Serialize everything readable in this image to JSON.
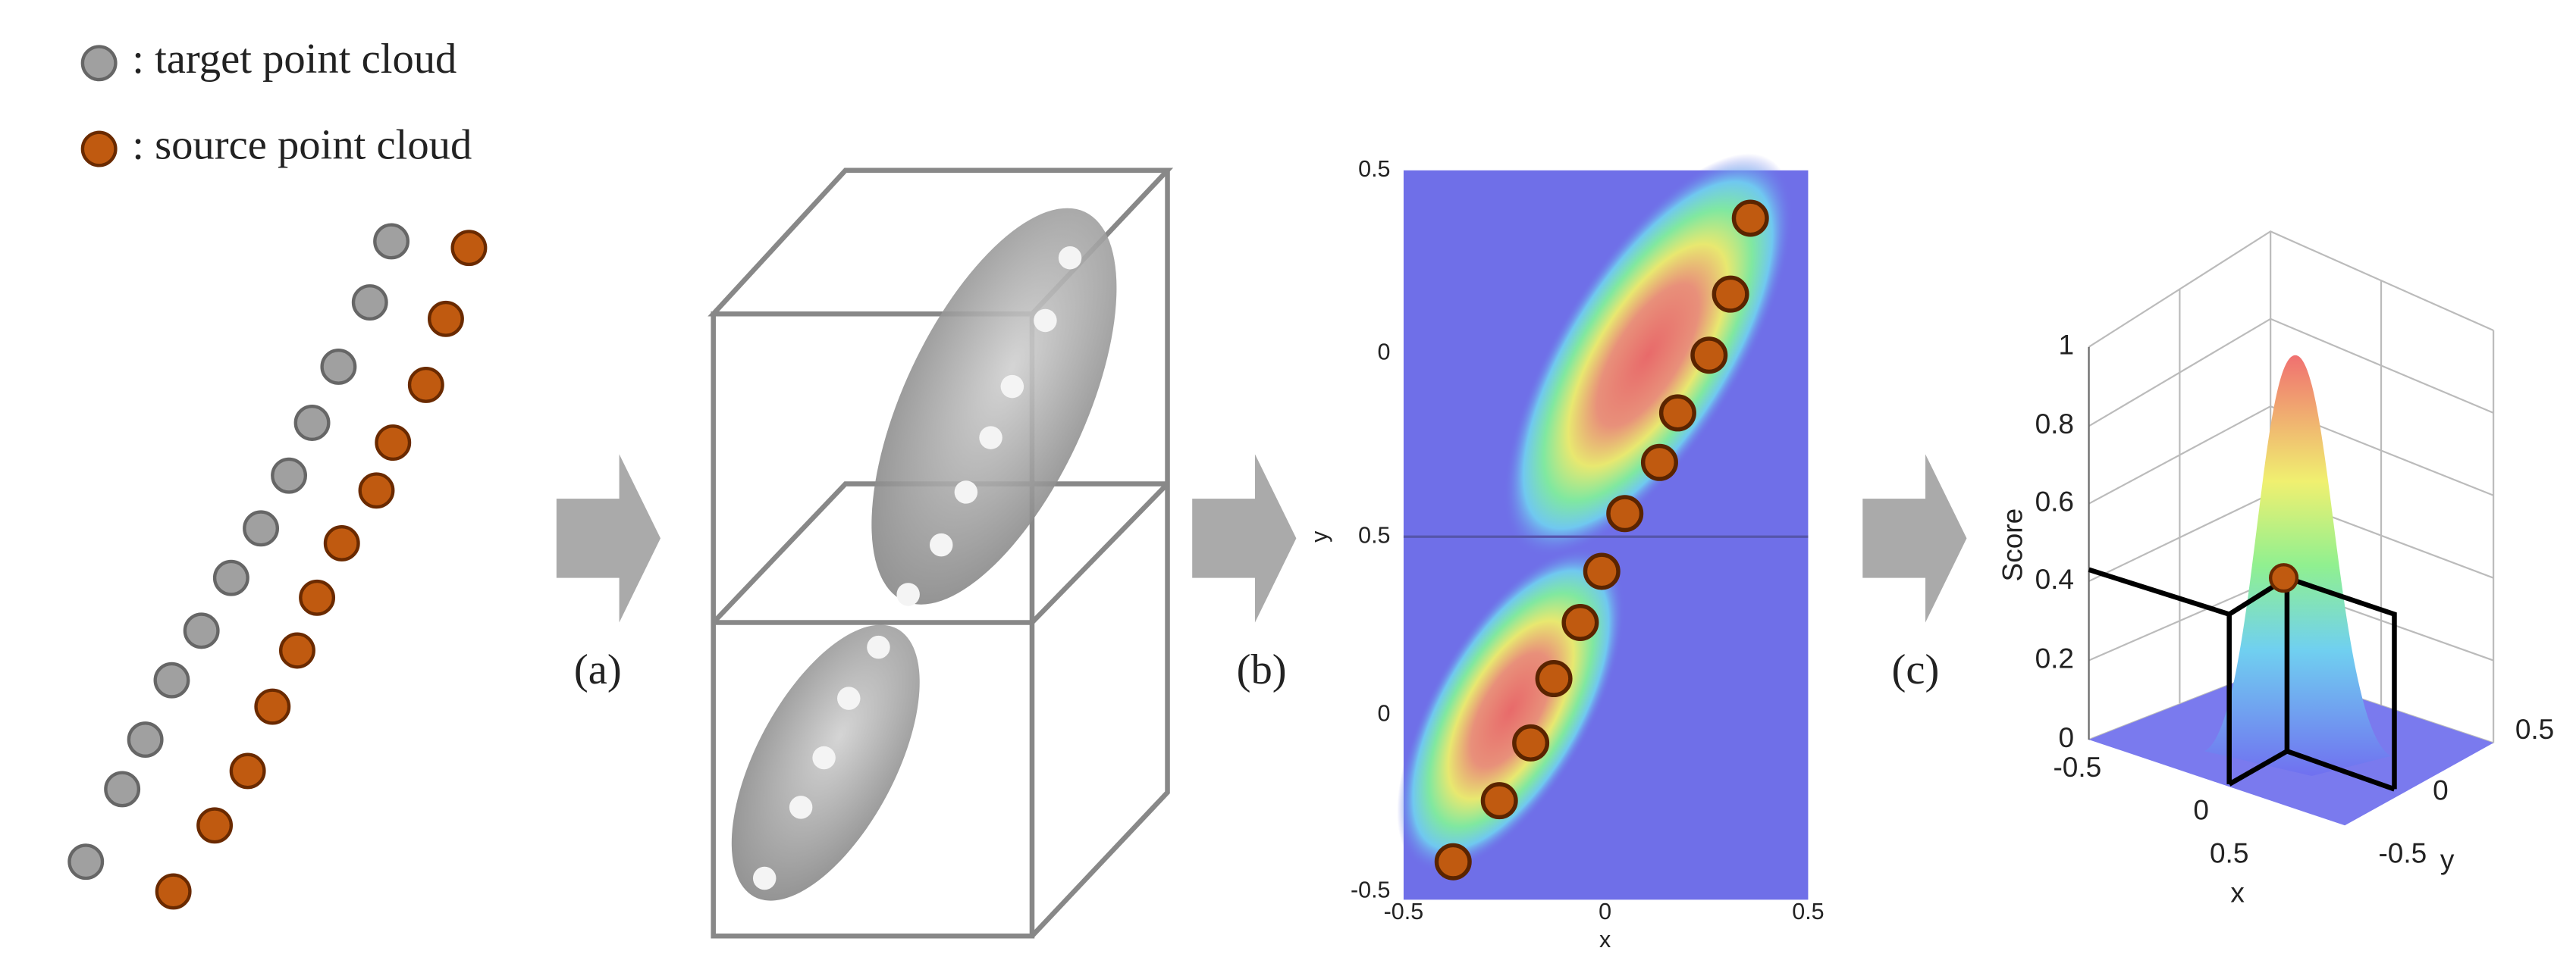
{
  "legend": [
    {
      "label": ": target point cloud"
    },
    {
      "label": ": source point cloud"
    }
  ],
  "steps": [
    "(a)",
    "(b)",
    "(c)"
  ],
  "heatmap": {
    "y_ticks": [
      "0.5",
      "0",
      "0.5",
      "0",
      "-0.5"
    ],
    "x_ticks": [
      "-0.5",
      "0",
      "0.5"
    ],
    "x_label": "x",
    "y_label": "y"
  },
  "surface": {
    "z_ticks": [
      "1",
      "0.8",
      "0.6",
      "0.4",
      "0.2",
      "0"
    ],
    "z_label": "Score",
    "x_ticks": [
      "-0.5",
      "0",
      "0.5"
    ],
    "x_label": "x",
    "y_ticks": [
      "0.5",
      "0",
      "-0.5"
    ],
    "y_label": "y"
  }
}
